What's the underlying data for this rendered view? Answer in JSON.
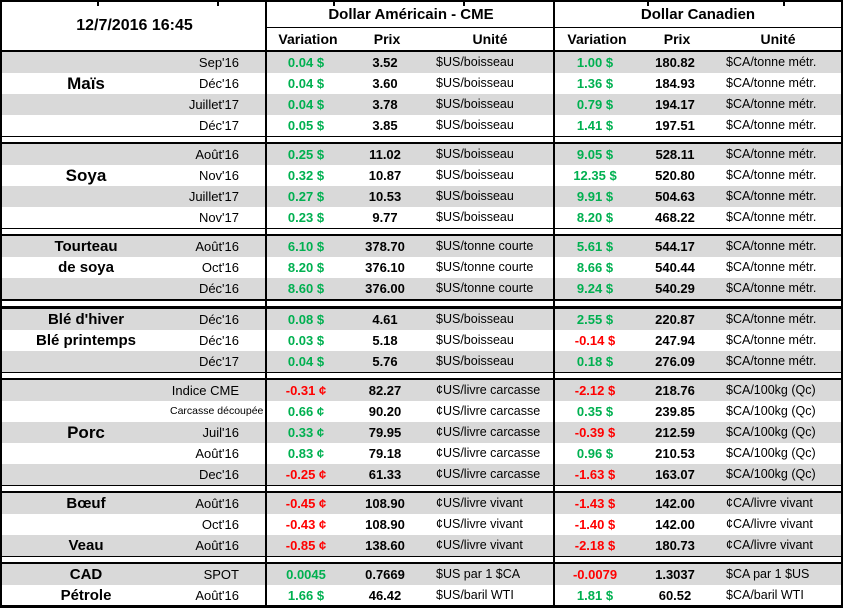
{
  "header": {
    "timestamp": "12/7/2016 16:45",
    "group_us": "Dollar Américain - CME",
    "group_ca": "Dollar Canadien",
    "cols": {
      "variation": "Variation",
      "prix": "Prix",
      "unite": "Unité"
    }
  },
  "colors": {
    "green": "#00b050",
    "red": "#ff0000",
    "stripe": "#d9d9d9"
  },
  "sections": [
    {
      "commodity": "Maïs",
      "rows": [
        {
          "label": "",
          "month": "Sep'16",
          "us_var": "0.04 $",
          "us_prix": "3.52",
          "us_unit": "$US/boisseau",
          "ca_var": "1.00 $",
          "ca_prix": "180.82",
          "ca_unit": "$CA/tonne métr."
        },
        {
          "label": "Maïs",
          "label_big": true,
          "month": "Déc'16",
          "us_var": "0.04 $",
          "us_prix": "3.60",
          "us_unit": "$US/boisseau",
          "ca_var": "1.36 $",
          "ca_prix": "184.93",
          "ca_unit": "$CA/tonne métr."
        },
        {
          "label": "",
          "month": "Juillet'17",
          "us_var": "0.04 $",
          "us_prix": "3.78",
          "us_unit": "$US/boisseau",
          "ca_var": "0.79 $",
          "ca_prix": "194.17",
          "ca_unit": "$CA/tonne métr."
        },
        {
          "label": "",
          "month": "Déc'17",
          "us_var": "0.05 $",
          "us_prix": "3.85",
          "us_unit": "$US/boisseau",
          "ca_var": "1.41 $",
          "ca_prix": "197.51",
          "ca_unit": "$CA/tonne métr."
        }
      ]
    },
    {
      "commodity": "Soya",
      "rows": [
        {
          "label": "",
          "month": "Août'16",
          "us_var": "0.25 $",
          "us_prix": "11.02",
          "us_unit": "$US/boisseau",
          "ca_var": "9.05 $",
          "ca_prix": "528.11",
          "ca_unit": "$CA/tonne métr."
        },
        {
          "label": "Soya",
          "label_big": true,
          "month": "Nov'16",
          "us_var": "0.32 $",
          "us_prix": "10.87",
          "us_unit": "$US/boisseau",
          "ca_var": "12.35 $",
          "ca_prix": "520.80",
          "ca_unit": "$CA/tonne métr."
        },
        {
          "label": "",
          "month": "Juillet'17",
          "us_var": "0.27 $",
          "us_prix": "10.53",
          "us_unit": "$US/boisseau",
          "ca_var": "9.91 $",
          "ca_prix": "504.63",
          "ca_unit": "$CA/tonne métr."
        },
        {
          "label": "",
          "month": "Nov'17",
          "us_var": "0.23 $",
          "us_prix": "9.77",
          "us_unit": "$US/boisseau",
          "ca_var": "8.20 $",
          "ca_prix": "468.22",
          "ca_unit": "$CA/tonne métr."
        }
      ]
    },
    {
      "commodity": "Tourteau de soya",
      "rows": [
        {
          "label": "Tourteau",
          "month": "Août'16",
          "us_var": "6.10 $",
          "us_prix": "378.70",
          "us_unit": "$US/tonne courte",
          "ca_var": "5.61 $",
          "ca_prix": "544.17",
          "ca_unit": "$CA/tonne métr."
        },
        {
          "label": "de soya",
          "month": "Oct'16",
          "us_var": "8.20 $",
          "us_prix": "376.10",
          "us_unit": "$US/tonne courte",
          "ca_var": "8.66 $",
          "ca_prix": "540.44",
          "ca_unit": "$CA/tonne métr."
        },
        {
          "label": "",
          "month": "Déc'16",
          "us_var": "8.60 $",
          "us_prix": "376.00",
          "us_unit": "$US/tonne courte",
          "ca_var": "9.24 $",
          "ca_prix": "540.29",
          "ca_unit": "$CA/tonne métr."
        }
      ]
    },
    {
      "commodity": "Blé",
      "rows": [
        {
          "label": "Blé d'hiver",
          "month": "Déc'16",
          "us_var": "0.08 $",
          "us_prix": "4.61",
          "us_unit": "$US/boisseau",
          "ca_var": "2.55 $",
          "ca_prix": "220.87",
          "ca_unit": "$CA/tonne métr."
        },
        {
          "label": "Blé printemps",
          "month": "Déc'16",
          "us_var": "0.03 $",
          "us_prix": "5.18",
          "us_unit": "$US/boisseau",
          "ca_var": "-0.14 $",
          "ca_prix": "247.94",
          "ca_unit": "$CA/tonne métr."
        },
        {
          "label": "",
          "month": "Déc'17",
          "us_var": "0.04 $",
          "us_prix": "5.76",
          "us_unit": "$US/boisseau",
          "ca_var": "0.18 $",
          "ca_prix": "276.09",
          "ca_unit": "$CA/tonne métr."
        }
      ]
    },
    {
      "commodity": "Porc",
      "rows": [
        {
          "label": "",
          "month": "Indice CME",
          "us_var": "-0.31 ¢",
          "us_prix": "82.27",
          "us_unit": "¢US/livre carcasse",
          "ca_var": "-2.12 $",
          "ca_prix": "218.76",
          "ca_unit": "$CA/100kg (Qc)"
        },
        {
          "label": "",
          "month": "Carcasse découpée",
          "month_small": true,
          "us_var": "0.66 ¢",
          "us_prix": "90.20",
          "us_unit": "¢US/livre carcasse",
          "ca_var": "0.35 $",
          "ca_prix": "239.85",
          "ca_unit": "$CA/100kg (Qc)"
        },
        {
          "label": "Porc",
          "label_big": true,
          "month": "Juil'16",
          "us_var": "0.33 ¢",
          "us_prix": "79.95",
          "us_unit": "¢US/livre carcasse",
          "ca_var": "-0.39 $",
          "ca_prix": "212.59",
          "ca_unit": "$CA/100kg (Qc)"
        },
        {
          "label": "",
          "month": "Août'16",
          "us_var": "0.83 ¢",
          "us_prix": "79.18",
          "us_unit": "¢US/livre carcasse",
          "ca_var": "0.96 $",
          "ca_prix": "210.53",
          "ca_unit": "$CA/100kg (Qc)"
        },
        {
          "label": "",
          "month": "Dec'16",
          "us_var": "-0.25 ¢",
          "us_prix": "61.33",
          "us_unit": "¢US/livre carcasse",
          "ca_var": "-1.63 $",
          "ca_prix": "163.07",
          "ca_unit": "$CA/100kg (Qc)"
        }
      ]
    },
    {
      "commodity": "Bœuf / Veau",
      "rows": [
        {
          "label": "Bœuf",
          "month": "Août'16",
          "us_var": "-0.45 ¢",
          "us_prix": "108.90",
          "us_unit": "¢US/livre vivant",
          "ca_var": "-1.43 $",
          "ca_prix": "142.00",
          "ca_unit": "¢CA/livre vivant"
        },
        {
          "label": "",
          "month": "Oct'16",
          "us_var": "-0.43 ¢",
          "us_prix": "108.90",
          "us_unit": "¢US/livre vivant",
          "ca_var": "-1.40 $",
          "ca_prix": "142.00",
          "ca_unit": "¢CA/livre vivant"
        },
        {
          "label": "Veau",
          "month": "Août'16",
          "us_var": "-0.85 ¢",
          "us_prix": "138.60",
          "us_unit": "¢US/livre vivant",
          "ca_var": "-2.18 $",
          "ca_prix": "180.73",
          "ca_unit": "¢CA/livre vivant"
        }
      ]
    },
    {
      "commodity": "CAD / Pétrole",
      "rows": [
        {
          "label": "CAD",
          "month": "SPOT",
          "us_var": "0.0045",
          "us_prix": "0.7669",
          "us_unit": "$US par 1 $CA",
          "ca_var": "-0.0079",
          "ca_prix": "1.3037",
          "ca_unit": "$CA par 1 $US"
        },
        {
          "label": "Pétrole",
          "month": "Août'16",
          "us_var": "1.66 $",
          "us_prix": "46.42",
          "us_unit": "$US/baril WTI",
          "ca_var": "1.81 $",
          "ca_prix": "60.52",
          "ca_unit": "$CA/baril WTI"
        }
      ]
    }
  ]
}
